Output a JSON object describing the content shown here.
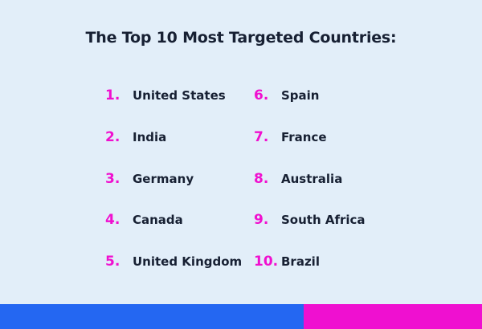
{
  "title": "The Top 10 Most Targeted Countries:",
  "colors": {
    "background": "#e2eef9",
    "accent_pink": "#f010cf",
    "accent_blue": "#2467f2",
    "text": "#172033"
  },
  "left_column": [
    {
      "number": "1.",
      "country": "United States"
    },
    {
      "number": "2.",
      "country": "India"
    },
    {
      "number": "3.",
      "country": "Germany"
    },
    {
      "number": "4.",
      "country": "Canada"
    },
    {
      "number": "5.",
      "country": "United Kingdom"
    }
  ],
  "right_column": [
    {
      "number": "6.",
      "country": "Spain"
    },
    {
      "number": "7.",
      "country": "France"
    },
    {
      "number": "8.",
      "country": "Australia"
    },
    {
      "number": "9.",
      "country": "South Africa"
    },
    {
      "number": "10.",
      "country": "Brazil"
    }
  ]
}
